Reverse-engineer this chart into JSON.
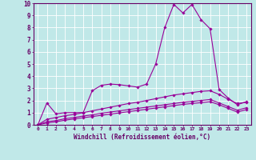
{
  "xlabel": "Windchill (Refroidissement éolien,°C)",
  "background_color": "#c0e8e8",
  "grid_color": "#ffffff",
  "line_color": "#990099",
  "xlim": [
    -0.5,
    23.5
  ],
  "ylim": [
    0,
    10
  ],
  "xticks": [
    0,
    1,
    2,
    3,
    4,
    5,
    6,
    7,
    8,
    9,
    10,
    11,
    12,
    13,
    14,
    15,
    16,
    17,
    18,
    19,
    20,
    21,
    22,
    23
  ],
  "yticks": [
    0,
    1,
    2,
    3,
    4,
    5,
    6,
    7,
    8,
    9,
    10
  ],
  "series": [
    [
      0.0,
      1.8,
      0.9,
      1.0,
      1.0,
      1.0,
      2.8,
      3.25,
      3.35,
      3.3,
      3.2,
      3.1,
      3.35,
      5.0,
      8.0,
      9.9,
      9.2,
      9.9,
      8.65,
      7.9,
      2.9,
      2.2,
      1.65,
      1.9
    ],
    [
      0.0,
      0.45,
      0.6,
      0.75,
      0.85,
      1.0,
      1.15,
      1.3,
      1.45,
      1.6,
      1.75,
      1.85,
      2.0,
      2.15,
      2.3,
      2.45,
      2.55,
      2.65,
      2.75,
      2.8,
      2.5,
      2.1,
      1.75,
      1.85
    ],
    [
      0.0,
      0.25,
      0.35,
      0.5,
      0.6,
      0.72,
      0.82,
      0.95,
      1.05,
      1.15,
      1.25,
      1.35,
      1.45,
      1.55,
      1.65,
      1.75,
      1.85,
      1.92,
      2.0,
      2.08,
      1.8,
      1.5,
      1.2,
      1.4
    ],
    [
      0.0,
      0.15,
      0.25,
      0.38,
      0.48,
      0.58,
      0.68,
      0.78,
      0.88,
      0.98,
      1.08,
      1.18,
      1.28,
      1.38,
      1.48,
      1.58,
      1.68,
      1.75,
      1.82,
      1.9,
      1.65,
      1.35,
      1.05,
      1.25
    ]
  ]
}
